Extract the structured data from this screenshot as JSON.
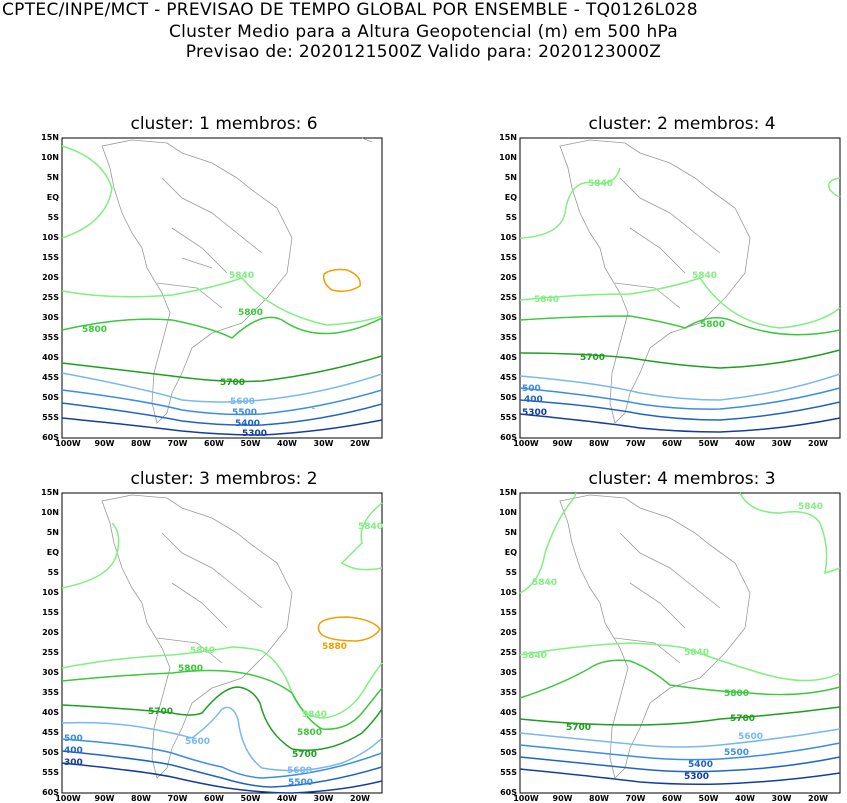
{
  "header": {
    "line1": "CPTEC/INPE/MCT - PREVISAO DE TEMPO GLOBAL POR ENSEMBLE - TQ0126L028",
    "line2": "Cluster Medio para a Altura Geopotencial (m) em 500 hPa",
    "line3": "Previsao de: 2020121500Z    Valido para: 2020123000Z"
  },
  "axes": {
    "lat_labels": [
      "15N",
      "10N",
      "5N",
      "EQ",
      "5S",
      "10S",
      "15S",
      "20S",
      "25S",
      "30S",
      "35S",
      "40S",
      "45S",
      "50S",
      "55S",
      "60S"
    ],
    "lon_labels": [
      "100W",
      "90W",
      "80W",
      "70W",
      "60W",
      "50W",
      "40W",
      "30W",
      "20W"
    ]
  },
  "colors": {
    "c5840": "#80f080",
    "c5800": "#3cc83c",
    "c5700": "#1e9e1e",
    "c5600": "#78b8f0",
    "c5500": "#3c8ce6",
    "c5400": "#1e64c8",
    "c5300": "#143ca0",
    "c5880": "#f0a000",
    "land": "#9a9a9a"
  },
  "panels": [
    {
      "title": "cluster: 1   membros: 6",
      "labels": [
        "5840",
        "5800",
        "5800",
        "5700",
        "5600",
        "5500",
        "5400",
        "5300"
      ]
    },
    {
      "title": "cluster: 2   membros: 4",
      "labels": [
        "5840",
        "5840",
        "5840",
        "5800",
        "5700",
        "500",
        "400",
        "5300"
      ]
    },
    {
      "title": "cluster: 3   membros: 2",
      "labels": [
        "5840",
        "5880",
        "5840",
        "5800",
        "5840",
        "5800",
        "5700",
        "5700",
        "5600",
        "500",
        "400",
        "300",
        "5600",
        "5500"
      ]
    },
    {
      "title": "cluster: 4   membros: 3",
      "labels": [
        "5840",
        "5840",
        "5840",
        "5840",
        "5800",
        "5700",
        "5700",
        "5600",
        "5500",
        "5400",
        "5300"
      ]
    }
  ]
}
